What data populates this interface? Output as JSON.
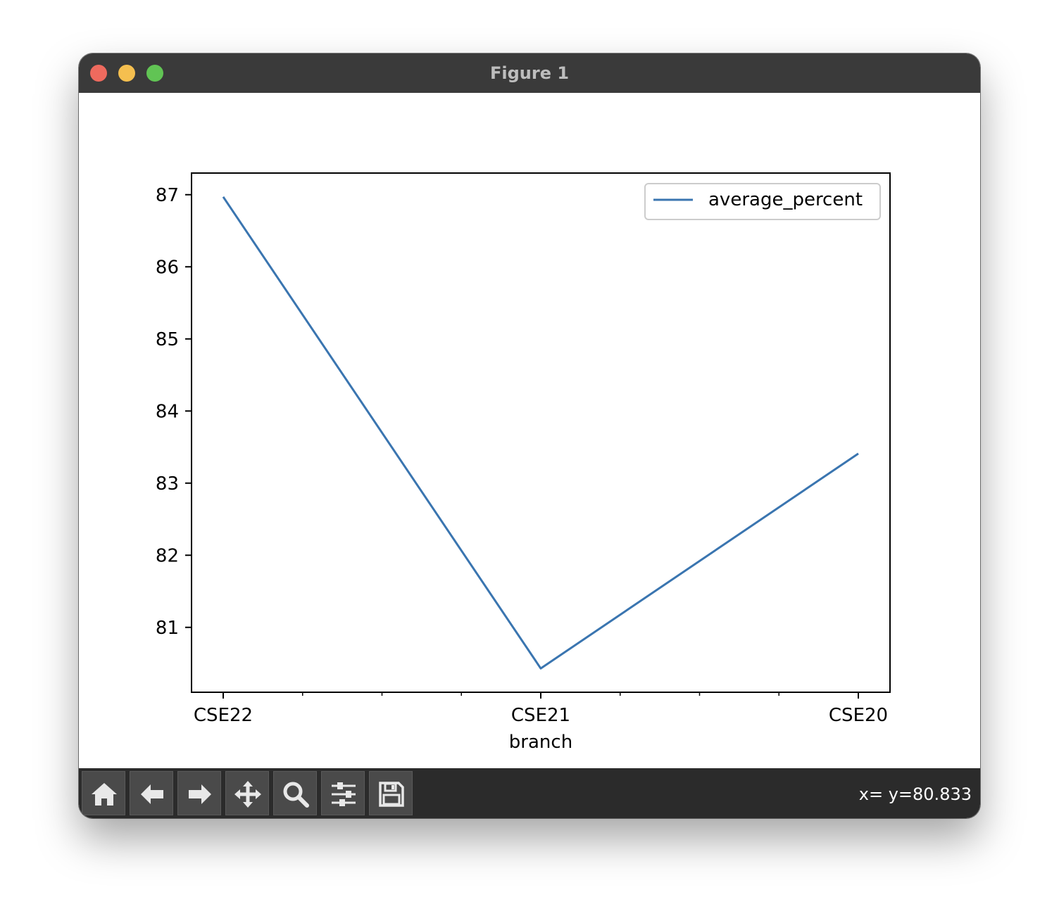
{
  "window": {
    "title": "Figure 1"
  },
  "toolbar": {
    "buttons": [
      {
        "name": "home-button",
        "icon": "home-icon"
      },
      {
        "name": "back-button",
        "icon": "arrow-left-icon"
      },
      {
        "name": "forward-button",
        "icon": "arrow-right-icon"
      },
      {
        "name": "pan-button",
        "icon": "move-icon"
      },
      {
        "name": "zoom-button",
        "icon": "magnifier-icon"
      },
      {
        "name": "configure-subplots-button",
        "icon": "sliders-icon"
      },
      {
        "name": "save-button",
        "icon": "floppy-disk-icon"
      }
    ],
    "coordinates": "x= y=80.833"
  },
  "chart_data": {
    "type": "line",
    "categories": [
      "CSE22",
      "CSE21",
      "CSE20"
    ],
    "series": [
      {
        "name": "average_percent",
        "values": [
          86.97,
          80.43,
          83.41
        ],
        "color": "#3a75b0"
      }
    ],
    "xlabel": "branch",
    "ylabel": "",
    "yticks": [
      81,
      82,
      83,
      84,
      85,
      86,
      87
    ],
    "ylim": [
      80.1,
      87.3
    ],
    "legend": "top-right",
    "grid": false
  }
}
